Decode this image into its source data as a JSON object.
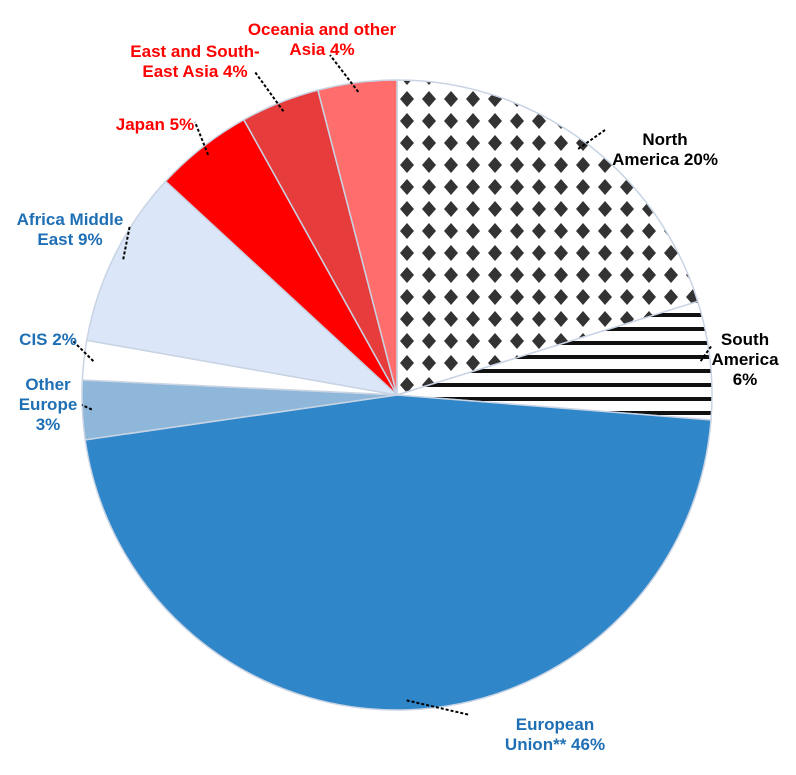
{
  "chart_data": {
    "type": "pie",
    "categories": [
      "North America",
      "South America",
      "European Union**",
      "Other Europe",
      "CIS",
      "Africa Middle East",
      "Japan",
      "East and South-East Asia",
      "Oceania and other Asia"
    ],
    "values": [
      20,
      6,
      46,
      3,
      2,
      9,
      5,
      4,
      4
    ],
    "value_labels": [
      "20%",
      "6%",
      "46%",
      "3%",
      "2%",
      "9%",
      "5%",
      "4%",
      "4%"
    ],
    "colors": [
      "#333333",
      "#222222",
      "#2f86c9",
      "#8fb7d9",
      "#ffffff",
      "#dbe7f8",
      "#ff0000",
      "#e63c3c",
      "#ff6d6d"
    ],
    "patterns": [
      "diamonds",
      "stripes",
      null,
      null,
      null,
      null,
      null,
      null,
      null
    ],
    "label_colors": [
      "#000000",
      "#000000",
      "#1f6fb5",
      "#1f6fb5",
      "#1f6fb5",
      "#1f6fb5",
      "#ff0000",
      "#ff0000",
      "#ff0000"
    ]
  }
}
